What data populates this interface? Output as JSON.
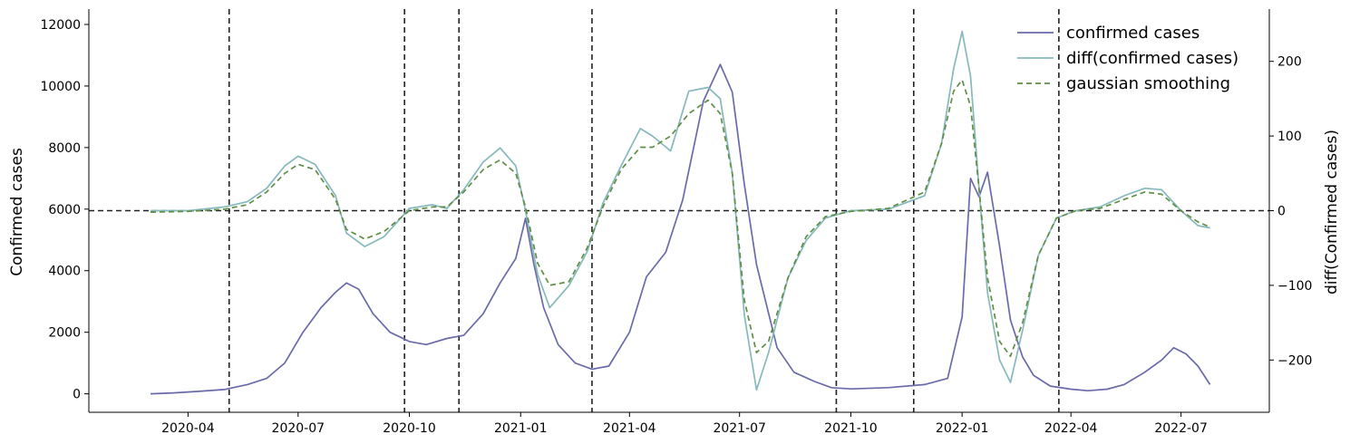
{
  "chart_data": {
    "type": "line",
    "title": "",
    "xlabel": "",
    "ylabel_left": "Confirmed cases",
    "ylabel_right": "diff(Confirmed cases)",
    "ylim_left": [
      -600,
      12500
    ],
    "ylim_right": [
      -270,
      270
    ],
    "xlim": [
      "2020-01-10",
      "2022-09-12"
    ],
    "x_ticks": [
      "2020-04",
      "2020-07",
      "2020-10",
      "2021-01",
      "2021-04",
      "2021-07",
      "2021-10",
      "2022-01",
      "2022-04",
      "2022-07"
    ],
    "y_ticks_left": [
      0,
      2000,
      4000,
      6000,
      8000,
      10000,
      12000
    ],
    "y_ticks_right": [
      -200,
      -100,
      0,
      100,
      200
    ],
    "grid": false,
    "legend_position": "top-right",
    "series": [
      {
        "name": "confirmed cases",
        "axis": "left",
        "color": "#6a6aaa",
        "style": "solid",
        "points": [
          [
            "2020-03-01",
            0
          ],
          [
            "2020-03-20",
            30
          ],
          [
            "2020-04-10",
            80
          ],
          [
            "2020-05-01",
            140
          ],
          [
            "2020-05-20",
            300
          ],
          [
            "2020-06-05",
            500
          ],
          [
            "2020-06-20",
            1000
          ],
          [
            "2020-07-05",
            2000
          ],
          [
            "2020-07-20",
            2800
          ],
          [
            "2020-08-01",
            3300
          ],
          [
            "2020-08-10",
            3600
          ],
          [
            "2020-08-20",
            3400
          ],
          [
            "2020-09-01",
            2600
          ],
          [
            "2020-09-15",
            2000
          ],
          [
            "2020-10-01",
            1700
          ],
          [
            "2020-10-15",
            1600
          ],
          [
            "2020-11-01",
            1800
          ],
          [
            "2020-11-15",
            1900
          ],
          [
            "2020-12-01",
            2600
          ],
          [
            "2020-12-15",
            3600
          ],
          [
            "2020-12-28",
            4400
          ],
          [
            "2021-01-05",
            5700
          ],
          [
            "2021-01-12",
            4200
          ],
          [
            "2021-01-20",
            2800
          ],
          [
            "2021-02-01",
            1600
          ],
          [
            "2021-02-15",
            1000
          ],
          [
            "2021-03-01",
            800
          ],
          [
            "2021-03-15",
            900
          ],
          [
            "2021-04-01",
            2000
          ],
          [
            "2021-04-15",
            3800
          ],
          [
            "2021-05-01",
            4600
          ],
          [
            "2021-05-15",
            6300
          ],
          [
            "2021-06-01",
            9500
          ],
          [
            "2021-06-15",
            10700
          ],
          [
            "2021-06-25",
            9800
          ],
          [
            "2021-07-05",
            6800
          ],
          [
            "2021-07-15",
            4200
          ],
          [
            "2021-08-01",
            1500
          ],
          [
            "2021-08-15",
            700
          ],
          [
            "2021-09-01",
            400
          ],
          [
            "2021-09-15",
            200
          ],
          [
            "2021-10-01",
            160
          ],
          [
            "2021-11-01",
            200
          ],
          [
            "2021-12-01",
            300
          ],
          [
            "2021-12-20",
            500
          ],
          [
            "2022-01-01",
            2500
          ],
          [
            "2022-01-08",
            7000
          ],
          [
            "2022-01-15",
            6400
          ],
          [
            "2022-01-22",
            7200
          ],
          [
            "2022-02-01",
            4800
          ],
          [
            "2022-02-10",
            2400
          ],
          [
            "2022-02-20",
            1200
          ],
          [
            "2022-03-01",
            600
          ],
          [
            "2022-03-15",
            250
          ],
          [
            "2022-04-01",
            150
          ],
          [
            "2022-04-15",
            100
          ],
          [
            "2022-05-01",
            150
          ],
          [
            "2022-05-15",
            300
          ],
          [
            "2022-06-01",
            700
          ],
          [
            "2022-06-15",
            1100
          ],
          [
            "2022-06-25",
            1500
          ],
          [
            "2022-07-05",
            1300
          ],
          [
            "2022-07-15",
            900
          ],
          [
            "2022-07-25",
            300
          ]
        ]
      },
      {
        "name": "diff(confirmed cases)",
        "axis": "right",
        "color": "#86b9bc",
        "style": "solid",
        "points": [
          [
            "2020-03-01",
            0
          ],
          [
            "2020-04-01",
            0
          ],
          [
            "2020-05-01",
            5
          ],
          [
            "2020-05-20",
            12
          ],
          [
            "2020-06-05",
            30
          ],
          [
            "2020-06-20",
            60
          ],
          [
            "2020-07-01",
            73
          ],
          [
            "2020-07-15",
            62
          ],
          [
            "2020-08-01",
            20
          ],
          [
            "2020-08-10",
            -30
          ],
          [
            "2020-08-25",
            -48
          ],
          [
            "2020-09-10",
            -35
          ],
          [
            "2020-10-01",
            3
          ],
          [
            "2020-10-20",
            8
          ],
          [
            "2020-11-01",
            3
          ],
          [
            "2020-11-15",
            28
          ],
          [
            "2020-12-01",
            65
          ],
          [
            "2020-12-15",
            84
          ],
          [
            "2020-12-28",
            60
          ],
          [
            "2021-01-05",
            0
          ],
          [
            "2021-01-15",
            -85
          ],
          [
            "2021-01-25",
            -130
          ],
          [
            "2021-02-10",
            -100
          ],
          [
            "2021-02-25",
            -55
          ],
          [
            "2021-03-10",
            10
          ],
          [
            "2021-03-25",
            60
          ],
          [
            "2021-04-10",
            110
          ],
          [
            "2021-04-20",
            100
          ],
          [
            "2021-05-05",
            80
          ],
          [
            "2021-05-20",
            160
          ],
          [
            "2021-06-05",
            165
          ],
          [
            "2021-06-15",
            150
          ],
          [
            "2021-06-25",
            50
          ],
          [
            "2021-07-05",
            -140
          ],
          [
            "2021-07-15",
            -240
          ],
          [
            "2021-07-25",
            -190
          ],
          [
            "2021-08-10",
            -90
          ],
          [
            "2021-08-25",
            -40
          ],
          [
            "2021-09-10",
            -10
          ],
          [
            "2021-10-01",
            0
          ],
          [
            "2021-11-01",
            2
          ],
          [
            "2021-12-01",
            20
          ],
          [
            "2021-12-15",
            90
          ],
          [
            "2021-12-25",
            190
          ],
          [
            "2022-01-01",
            240
          ],
          [
            "2022-01-08",
            180
          ],
          [
            "2022-01-15",
            30
          ],
          [
            "2022-01-22",
            -110
          ],
          [
            "2022-02-01",
            -200
          ],
          [
            "2022-02-10",
            -230
          ],
          [
            "2022-02-20",
            -160
          ],
          [
            "2022-03-05",
            -60
          ],
          [
            "2022-03-20",
            -10
          ],
          [
            "2022-04-05",
            0
          ],
          [
            "2022-04-25",
            5
          ],
          [
            "2022-05-15",
            20
          ],
          [
            "2022-06-01",
            30
          ],
          [
            "2022-06-15",
            28
          ],
          [
            "2022-07-01",
            0
          ],
          [
            "2022-07-15",
            -20
          ],
          [
            "2022-07-25",
            -23
          ]
        ]
      },
      {
        "name": "gaussian smoothing",
        "axis": "right",
        "color": "#5f8f44",
        "style": "dashed",
        "points": [
          [
            "2020-03-01",
            -2
          ],
          [
            "2020-04-01",
            -1
          ],
          [
            "2020-05-01",
            2
          ],
          [
            "2020-05-20",
            8
          ],
          [
            "2020-06-05",
            25
          ],
          [
            "2020-06-20",
            50
          ],
          [
            "2020-07-01",
            62
          ],
          [
            "2020-07-15",
            55
          ],
          [
            "2020-08-01",
            15
          ],
          [
            "2020-08-10",
            -25
          ],
          [
            "2020-08-25",
            -38
          ],
          [
            "2020-09-10",
            -28
          ],
          [
            "2020-10-01",
            0
          ],
          [
            "2020-10-20",
            5
          ],
          [
            "2020-11-01",
            5
          ],
          [
            "2020-11-15",
            25
          ],
          [
            "2020-12-01",
            55
          ],
          [
            "2020-12-15",
            68
          ],
          [
            "2020-12-28",
            50
          ],
          [
            "2021-01-05",
            5
          ],
          [
            "2021-01-15",
            -70
          ],
          [
            "2021-01-25",
            -100
          ],
          [
            "2021-02-10",
            -95
          ],
          [
            "2021-02-25",
            -50
          ],
          [
            "2021-03-10",
            5
          ],
          [
            "2021-03-25",
            55
          ],
          [
            "2021-04-10",
            85
          ],
          [
            "2021-04-20",
            85
          ],
          [
            "2021-05-05",
            100
          ],
          [
            "2021-05-20",
            130
          ],
          [
            "2021-06-05",
            148
          ],
          [
            "2021-06-15",
            130
          ],
          [
            "2021-06-25",
            50
          ],
          [
            "2021-07-05",
            -120
          ],
          [
            "2021-07-15",
            -190
          ],
          [
            "2021-07-25",
            -175
          ],
          [
            "2021-08-10",
            -90
          ],
          [
            "2021-08-25",
            -35
          ],
          [
            "2021-09-10",
            -8
          ],
          [
            "2021-10-01",
            -1
          ],
          [
            "2021-11-01",
            3
          ],
          [
            "2021-12-01",
            25
          ],
          [
            "2021-12-15",
            90
          ],
          [
            "2021-12-25",
            160
          ],
          [
            "2022-01-01",
            175
          ],
          [
            "2022-01-08",
            140
          ],
          [
            "2022-01-15",
            30
          ],
          [
            "2022-01-22",
            -90
          ],
          [
            "2022-02-01",
            -175
          ],
          [
            "2022-02-10",
            -195
          ],
          [
            "2022-02-20",
            -150
          ],
          [
            "2022-03-05",
            -60
          ],
          [
            "2022-03-20",
            -10
          ],
          [
            "2022-04-05",
            0
          ],
          [
            "2022-04-25",
            3
          ],
          [
            "2022-05-15",
            15
          ],
          [
            "2022-06-01",
            25
          ],
          [
            "2022-06-15",
            22
          ],
          [
            "2022-07-01",
            0
          ],
          [
            "2022-07-15",
            -15
          ],
          [
            "2022-07-25",
            -22
          ]
        ]
      }
    ],
    "reference_lines": {
      "vertical_dates": [
        "2020-05-05",
        "2020-09-27",
        "2020-11-11",
        "2021-03-01",
        "2021-09-19",
        "2021-11-22",
        "2022-03-22"
      ],
      "horizontal_right_value": 0,
      "color": "#222222",
      "style": "dashed"
    }
  }
}
